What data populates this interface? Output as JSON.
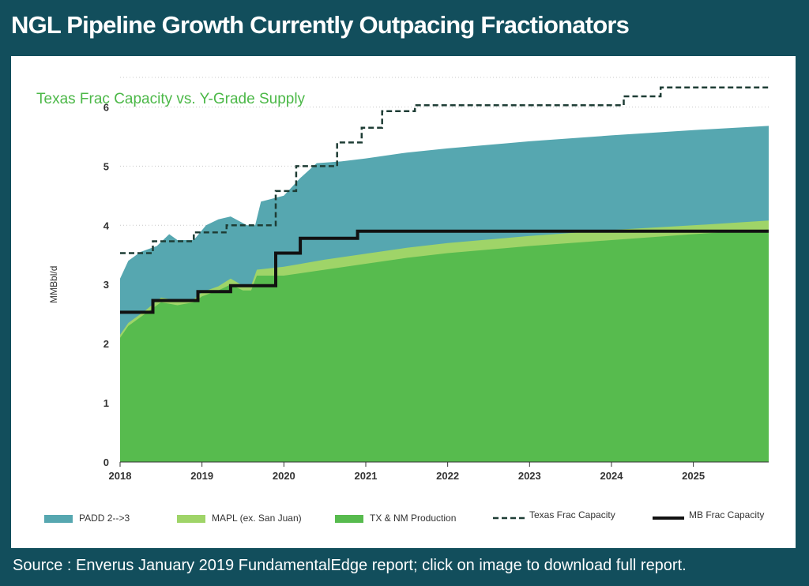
{
  "title": "NGL Pipeline Growth Currently Outpacing Fractionators",
  "source": "Source : Enverus January 2019 FundamentalEdge report; click on image to download full report.",
  "colors": {
    "background": "#124e5c",
    "padd": "#56a7b0",
    "mapl": "#9fd468",
    "txnm": "#57bb4e",
    "subtitle": "#4cb848"
  },
  "chart_data": {
    "type": "area",
    "title": "Texas Frac Capacity vs. Y-Grade Supply",
    "ylabel": "MMBbl/d",
    "xlabel": "",
    "xlim": [
      2018,
      2025.92
    ],
    "ylim": [
      0,
      6.5
    ],
    "yticks": [
      0,
      1,
      2,
      3,
      4,
      5,
      6
    ],
    "xticks": [
      2018,
      2019,
      2020,
      2021,
      2022,
      2023,
      2024,
      2025
    ],
    "grid": "horizontal dotted",
    "legend_position": "bottom",
    "stacked": true,
    "series": [
      {
        "name": "TX & NM Production",
        "kind": "area",
        "color": "#57bb4e",
        "points": [
          [
            2018.0,
            2.1
          ],
          [
            2018.1,
            2.3
          ],
          [
            2018.3,
            2.5
          ],
          [
            2018.5,
            2.7
          ],
          [
            2018.7,
            2.65
          ],
          [
            2018.9,
            2.7
          ],
          [
            2019.0,
            2.8
          ],
          [
            2019.2,
            2.9
          ],
          [
            2019.35,
            3.0
          ],
          [
            2019.5,
            2.9
          ],
          [
            2019.6,
            2.9
          ],
          [
            2019.67,
            3.15
          ],
          [
            2020.0,
            3.15
          ],
          [
            2020.5,
            3.25
          ],
          [
            2021.0,
            3.35
          ],
          [
            2021.5,
            3.45
          ],
          [
            2022.0,
            3.53
          ],
          [
            2023.0,
            3.65
          ],
          [
            2024.0,
            3.75
          ],
          [
            2025.0,
            3.85
          ],
          [
            2025.92,
            3.93
          ]
        ]
      },
      {
        "name": "MAPL (ex. San Juan)",
        "kind": "area",
        "color": "#9fd468",
        "points": [
          [
            2018.0,
            2.15
          ],
          [
            2018.1,
            2.35
          ],
          [
            2018.3,
            2.55
          ],
          [
            2018.5,
            2.78
          ],
          [
            2018.7,
            2.73
          ],
          [
            2018.9,
            2.75
          ],
          [
            2019.0,
            2.87
          ],
          [
            2019.2,
            2.97
          ],
          [
            2019.35,
            3.1
          ],
          [
            2019.5,
            2.98
          ],
          [
            2019.6,
            2.98
          ],
          [
            2019.67,
            3.25
          ],
          [
            2020.0,
            3.3
          ],
          [
            2020.5,
            3.42
          ],
          [
            2021.0,
            3.52
          ],
          [
            2021.5,
            3.62
          ],
          [
            2022.0,
            3.7
          ],
          [
            2023.0,
            3.82
          ],
          [
            2024.0,
            3.92
          ],
          [
            2025.0,
            4.0
          ],
          [
            2025.92,
            4.08
          ]
        ]
      },
      {
        "name": "PADD 2-->3",
        "kind": "area",
        "color": "#56a7b0",
        "points": [
          [
            2018.0,
            3.1
          ],
          [
            2018.1,
            3.4
          ],
          [
            2018.25,
            3.55
          ],
          [
            2018.45,
            3.65
          ],
          [
            2018.6,
            3.85
          ],
          [
            2018.7,
            3.75
          ],
          [
            2018.9,
            3.75
          ],
          [
            2019.05,
            4.0
          ],
          [
            2019.2,
            4.1
          ],
          [
            2019.35,
            4.15
          ],
          [
            2019.55,
            4.0
          ],
          [
            2019.65,
            4.0
          ],
          [
            2019.72,
            4.4
          ],
          [
            2020.0,
            4.5
          ],
          [
            2020.2,
            4.8
          ],
          [
            2020.4,
            5.05
          ],
          [
            2020.7,
            5.08
          ],
          [
            2021.0,
            5.13
          ],
          [
            2021.5,
            5.23
          ],
          [
            2022.0,
            5.3
          ],
          [
            2023.0,
            5.42
          ],
          [
            2024.0,
            5.52
          ],
          [
            2025.0,
            5.61
          ],
          [
            2025.92,
            5.68
          ]
        ]
      },
      {
        "name": "Texas Frac Capacity",
        "kind": "step-line",
        "style": "dashed",
        "color": "#1e3d35",
        "points": [
          [
            2018.0,
            3.53
          ],
          [
            2018.4,
            3.53
          ],
          [
            2018.4,
            3.73
          ],
          [
            2018.9,
            3.73
          ],
          [
            2018.9,
            3.88
          ],
          [
            2019.3,
            3.88
          ],
          [
            2019.3,
            4.0
          ],
          [
            2019.9,
            4.0
          ],
          [
            2019.9,
            4.58
          ],
          [
            2020.15,
            4.58
          ],
          [
            2020.15,
            5.0
          ],
          [
            2020.65,
            5.0
          ],
          [
            2020.65,
            5.4
          ],
          [
            2020.95,
            5.4
          ],
          [
            2020.95,
            5.65
          ],
          [
            2021.2,
            5.65
          ],
          [
            2021.2,
            5.93
          ],
          [
            2021.6,
            5.93
          ],
          [
            2021.6,
            6.03
          ],
          [
            2024.15,
            6.03
          ],
          [
            2024.15,
            6.18
          ],
          [
            2024.6,
            6.18
          ],
          [
            2024.6,
            6.33
          ],
          [
            2025.92,
            6.33
          ]
        ]
      },
      {
        "name": "MB Frac Capacity",
        "kind": "step-line",
        "style": "solid",
        "color": "#111111",
        "points": [
          [
            2018.0,
            2.53
          ],
          [
            2018.4,
            2.53
          ],
          [
            2018.4,
            2.73
          ],
          [
            2018.95,
            2.73
          ],
          [
            2018.95,
            2.88
          ],
          [
            2019.35,
            2.88
          ],
          [
            2019.35,
            2.98
          ],
          [
            2019.9,
            2.98
          ],
          [
            2019.9,
            3.53
          ],
          [
            2020.2,
            3.53
          ],
          [
            2020.2,
            3.78
          ],
          [
            2020.9,
            3.78
          ],
          [
            2020.9,
            3.9
          ],
          [
            2025.92,
            3.9
          ]
        ]
      }
    ],
    "legend": [
      {
        "label": "PADD 2-->3",
        "type": "patch",
        "color": "#56a7b0"
      },
      {
        "label": "MAPL (ex. San Juan)",
        "type": "patch",
        "color": "#9fd468"
      },
      {
        "label": "TX & NM Production",
        "type": "patch",
        "color": "#57bb4e"
      },
      {
        "label": "Texas Frac Capacity",
        "type": "dashed-line",
        "color": "#1e3d35"
      },
      {
        "label": "MB Frac Capacity",
        "type": "solid-line",
        "color": "#111111"
      }
    ]
  }
}
